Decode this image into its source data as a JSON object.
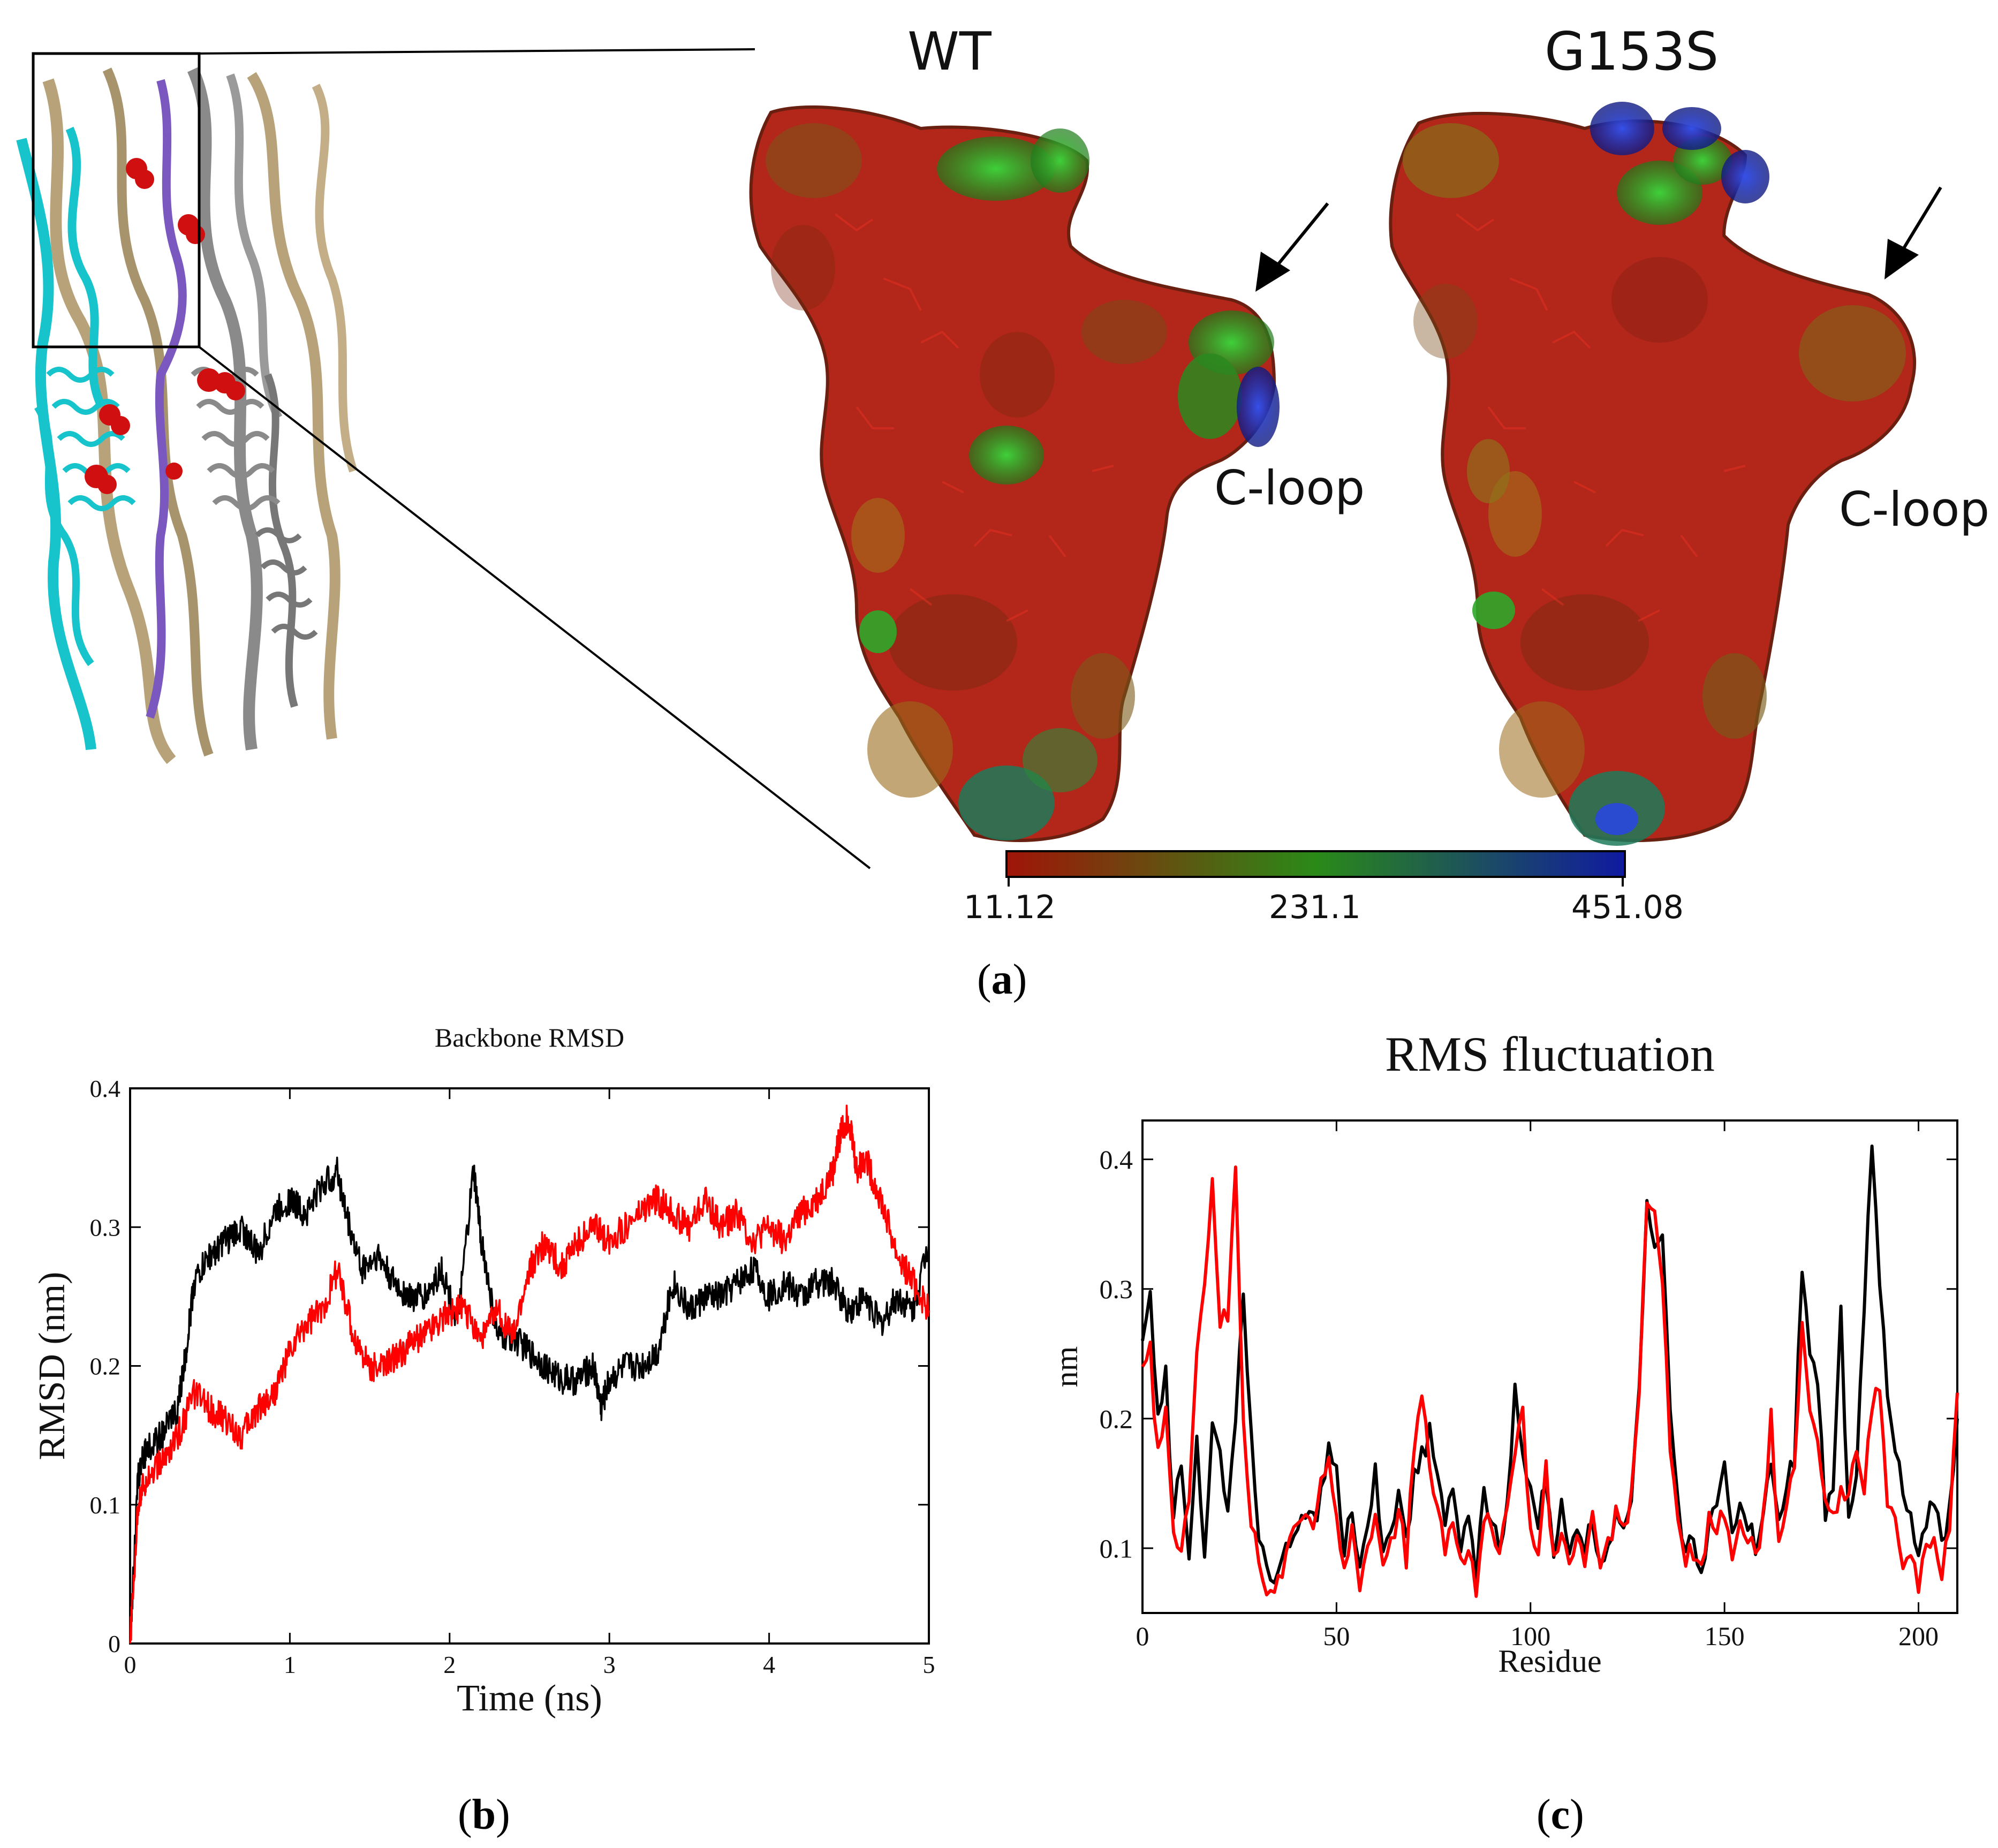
{
  "figure": {
    "panel_a": {
      "label_open": "(",
      "label_letter": "a",
      "label_close": ")",
      "structure_titles": [
        "WT",
        "G153S"
      ],
      "annotation": "C-loop",
      "colorbar": {
        "ticks": [
          "11.12",
          "231.1",
          "451.08"
        ],
        "colors": [
          "#a01408",
          "#2a8a18",
          "#101aa0"
        ]
      },
      "colors": {
        "surface_red": "#b3261a",
        "surface_dark": "#7a2a10",
        "surface_green": "#2fa82a",
        "surface_blue": "#1c2fa8",
        "ribbon_cyan": "#18c4cc",
        "ribbon_tan": "#b8a27a",
        "ribbon_gray": "#8a8a8a",
        "ribbon_purple": "#7a58c0",
        "atom_red": "#d01010"
      }
    },
    "panel_b": {
      "label_open": "(",
      "label_letter": "b",
      "label_close": ")"
    },
    "panel_c": {
      "label_open": "(",
      "label_letter": "c",
      "label_close": ")"
    }
  },
  "chart_data": [
    {
      "id": "rmsd",
      "type": "line",
      "title": "Backbone RMSD",
      "xlabel": "Time (ns)",
      "ylabel": "RMSD (nm)",
      "xlim": [
        0,
        5
      ],
      "ylim": [
        0,
        0.4
      ],
      "xticks": [
        0,
        1,
        2,
        3,
        4,
        5
      ],
      "yticks": [
        0,
        0.1,
        0.2,
        0.3,
        0.4
      ],
      "xtick_labels": [
        "0",
        "1",
        "2",
        "3",
        "4",
        "5"
      ],
      "ytick_labels": [
        "0",
        "0.1",
        "0.2",
        "0.3",
        "0.4"
      ],
      "series": [
        {
          "name": "WT",
          "color": "#000000",
          "x": [
            0,
            0.05,
            0.1,
            0.2,
            0.3,
            0.35,
            0.4,
            0.5,
            0.6,
            0.7,
            0.8,
            0.9,
            1.0,
            1.1,
            1.2,
            1.3,
            1.35,
            1.45,
            1.55,
            1.65,
            1.75,
            1.85,
            1.95,
            2.05,
            2.15,
            2.2,
            2.3,
            2.4,
            2.5,
            2.6,
            2.7,
            2.8,
            2.9,
            2.95,
            3.0,
            3.1,
            3.2,
            3.3,
            3.4,
            3.5,
            3.6,
            3.7,
            3.8,
            3.9,
            4.0,
            4.1,
            4.2,
            4.3,
            4.4,
            4.5,
            4.6,
            4.7,
            4.8,
            4.9,
            5.0
          ],
          "y": [
            0.0,
            0.12,
            0.14,
            0.15,
            0.17,
            0.21,
            0.26,
            0.28,
            0.29,
            0.3,
            0.28,
            0.31,
            0.32,
            0.31,
            0.33,
            0.34,
            0.31,
            0.27,
            0.28,
            0.26,
            0.25,
            0.25,
            0.27,
            0.23,
            0.34,
            0.29,
            0.22,
            0.22,
            0.21,
            0.2,
            0.19,
            0.19,
            0.2,
            0.17,
            0.19,
            0.2,
            0.2,
            0.21,
            0.26,
            0.24,
            0.25,
            0.25,
            0.26,
            0.27,
            0.25,
            0.26,
            0.25,
            0.26,
            0.26,
            0.24,
            0.25,
            0.23,
            0.25,
            0.24,
            0.29
          ]
        },
        {
          "name": "G153S",
          "color": "#ff0000",
          "x": [
            0,
            0.05,
            0.1,
            0.2,
            0.3,
            0.4,
            0.5,
            0.6,
            0.7,
            0.8,
            0.9,
            1.0,
            1.1,
            1.2,
            1.3,
            1.4,
            1.5,
            1.6,
            1.7,
            1.8,
            1.9,
            2.0,
            2.1,
            2.2,
            2.3,
            2.4,
            2.5,
            2.6,
            2.7,
            2.8,
            2.9,
            3.0,
            3.1,
            3.2,
            3.3,
            3.4,
            3.5,
            3.6,
            3.7,
            3.8,
            3.9,
            4.0,
            4.1,
            4.2,
            4.3,
            4.4,
            4.45,
            4.5,
            4.55,
            4.6,
            4.7,
            4.8,
            4.9,
            5.0
          ],
          "y": [
            0.0,
            0.1,
            0.12,
            0.13,
            0.15,
            0.18,
            0.17,
            0.16,
            0.15,
            0.17,
            0.18,
            0.21,
            0.23,
            0.24,
            0.27,
            0.22,
            0.2,
            0.2,
            0.21,
            0.22,
            0.23,
            0.24,
            0.24,
            0.22,
            0.24,
            0.22,
            0.27,
            0.29,
            0.27,
            0.29,
            0.3,
            0.29,
            0.3,
            0.31,
            0.32,
            0.31,
            0.3,
            0.32,
            0.3,
            0.31,
            0.29,
            0.3,
            0.29,
            0.31,
            0.32,
            0.34,
            0.37,
            0.38,
            0.34,
            0.35,
            0.32,
            0.28,
            0.26,
            0.24
          ]
        }
      ]
    },
    {
      "id": "rmsf",
      "type": "line",
      "title": "RMS fluctuation",
      "xlabel": "Residue",
      "ylabel": "nm",
      "xlim": [
        0,
        210
      ],
      "ylim": [
        0.05,
        0.43
      ],
      "xticks": [
        0,
        50,
        100,
        150,
        200
      ],
      "yticks": [
        0.1,
        0.2,
        0.3,
        0.4
      ],
      "xtick_labels": [
        "0",
        "50",
        "100",
        "150",
        "200"
      ],
      "ytick_labels": [
        "0.1",
        "0.2",
        "0.3",
        "0.4"
      ],
      "series": [
        {
          "name": "WT",
          "color": "#000000",
          "x": [
            0,
            2,
            4,
            6,
            8,
            10,
            12,
            14,
            16,
            18,
            20,
            22,
            24,
            26,
            28,
            30,
            32,
            34,
            36,
            38,
            40,
            42,
            44,
            46,
            48,
            50,
            52,
            54,
            56,
            58,
            60,
            62,
            64,
            66,
            68,
            70,
            72,
            74,
            76,
            78,
            80,
            82,
            84,
            86,
            88,
            90,
            92,
            94,
            96,
            98,
            100,
            102,
            104,
            106,
            108,
            110,
            112,
            114,
            116,
            118,
            120,
            122,
            124,
            126,
            128,
            130,
            132,
            134,
            136,
            138,
            140,
            142,
            144,
            146,
            148,
            150,
            152,
            154,
            156,
            158,
            160,
            162,
            164,
            166,
            168,
            170,
            172,
            174,
            176,
            178,
            180,
            182,
            184,
            186,
            188,
            190,
            192,
            194,
            196,
            198,
            200,
            202,
            204,
            206,
            208,
            210
          ],
          "y": [
            0.26,
            0.29,
            0.2,
            0.24,
            0.12,
            0.17,
            0.1,
            0.18,
            0.1,
            0.19,
            0.17,
            0.12,
            0.2,
            0.29,
            0.2,
            0.1,
            0.09,
            0.07,
            0.09,
            0.1,
            0.12,
            0.13,
            0.12,
            0.14,
            0.18,
            0.16,
            0.1,
            0.13,
            0.09,
            0.12,
            0.16,
            0.09,
            0.11,
            0.15,
            0.1,
            0.16,
            0.17,
            0.19,
            0.16,
            0.12,
            0.14,
            0.1,
            0.12,
            0.08,
            0.14,
            0.12,
            0.1,
            0.14,
            0.22,
            0.17,
            0.14,
            0.12,
            0.15,
            0.1,
            0.13,
            0.09,
            0.12,
            0.1,
            0.12,
            0.09,
            0.1,
            0.13,
            0.12,
            0.14,
            0.23,
            0.36,
            0.33,
            0.35,
            0.2,
            0.13,
            0.1,
            0.11,
            0.08,
            0.12,
            0.13,
            0.16,
            0.11,
            0.14,
            0.12,
            0.1,
            0.13,
            0.16,
            0.12,
            0.15,
            0.17,
            0.32,
            0.25,
            0.23,
            0.13,
            0.15,
            0.28,
            0.12,
            0.15,
            0.29,
            0.41,
            0.3,
            0.22,
            0.17,
            0.15,
            0.12,
            0.09,
            0.12,
            0.14,
            0.1,
            0.13,
            0.2
          ],
          "stride": 1
        },
        {
          "name": "G153S",
          "color": "#ff0000",
          "x": [
            0,
            2,
            4,
            6,
            8,
            10,
            12,
            14,
            16,
            18,
            20,
            22,
            24,
            26,
            28,
            30,
            32,
            34,
            36,
            38,
            40,
            42,
            44,
            46,
            48,
            50,
            52,
            54,
            56,
            58,
            60,
            62,
            64,
            66,
            68,
            70,
            72,
            74,
            76,
            78,
            80,
            82,
            84,
            86,
            88,
            90,
            92,
            94,
            96,
            98,
            100,
            102,
            104,
            106,
            108,
            110,
            112,
            114,
            116,
            118,
            120,
            122,
            124,
            126,
            128,
            130,
            132,
            134,
            136,
            138,
            140,
            142,
            144,
            146,
            148,
            150,
            152,
            154,
            156,
            158,
            160,
            162,
            164,
            166,
            168,
            170,
            172,
            174,
            176,
            178,
            180,
            182,
            184,
            186,
            188,
            190,
            192,
            194,
            196,
            198,
            200,
            202,
            204,
            206,
            208,
            210
          ],
          "y": [
            0.24,
            0.25,
            0.17,
            0.2,
            0.11,
            0.1,
            0.14,
            0.26,
            0.3,
            0.39,
            0.27,
            0.28,
            0.4,
            0.2,
            0.12,
            0.09,
            0.07,
            0.07,
            0.08,
            0.1,
            0.12,
            0.13,
            0.12,
            0.16,
            0.17,
            0.13,
            0.08,
            0.12,
            0.07,
            0.1,
            0.13,
            0.08,
            0.1,
            0.13,
            0.09,
            0.18,
            0.22,
            0.16,
            0.13,
            0.1,
            0.12,
            0.09,
            0.1,
            0.07,
            0.12,
            0.12,
            0.09,
            0.13,
            0.18,
            0.2,
            0.12,
            0.1,
            0.16,
            0.09,
            0.12,
            0.08,
            0.11,
            0.08,
            0.13,
            0.08,
            0.1,
            0.13,
            0.11,
            0.14,
            0.21,
            0.37,
            0.36,
            0.3,
            0.18,
            0.12,
            0.09,
            0.1,
            0.09,
            0.12,
            0.12,
            0.13,
            0.1,
            0.12,
            0.11,
            0.09,
            0.12,
            0.2,
            0.1,
            0.13,
            0.16,
            0.28,
            0.2,
            0.18,
            0.14,
            0.12,
            0.15,
            0.14,
            0.18,
            0.15,
            0.21,
            0.23,
            0.14,
            0.12,
            0.08,
            0.09,
            0.07,
            0.1,
            0.11,
            0.08,
            0.12,
            0.22
          ]
        }
      ]
    }
  ]
}
